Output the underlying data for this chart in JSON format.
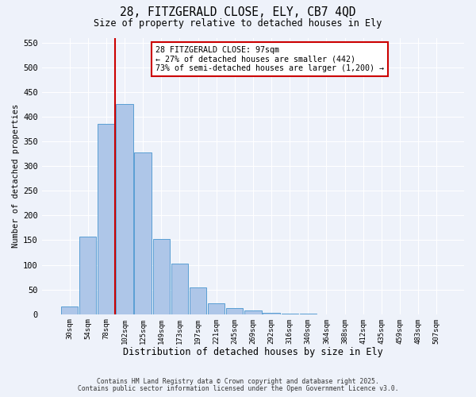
{
  "title_line1": "28, FITZGERALD CLOSE, ELY, CB7 4QD",
  "title_line2": "Size of property relative to detached houses in Ely",
  "xlabel": "Distribution of detached houses by size in Ely",
  "ylabel": "Number of detached properties",
  "bar_labels": [
    "30sqm",
    "54sqm",
    "78sqm",
    "102sqm",
    "125sqm",
    "149sqm",
    "173sqm",
    "197sqm",
    "221sqm",
    "245sqm",
    "269sqm",
    "292sqm",
    "316sqm",
    "340sqm",
    "364sqm",
    "388sqm",
    "412sqm",
    "435sqm",
    "459sqm",
    "483sqm",
    "507sqm"
  ],
  "bar_heights": [
    15,
    157,
    385,
    425,
    328,
    153,
    102,
    55,
    22,
    12,
    8,
    2,
    1,
    1,
    0,
    0,
    0,
    0,
    0,
    0,
    0
  ],
  "bar_color": "#aec6e8",
  "bar_edge_color": "#5a9fd4",
  "vline_color": "#cc0000",
  "vline_x_index": 3,
  "annotation_title": "28 FITZGERALD CLOSE: 97sqm",
  "annotation_line2": "← 27% of detached houses are smaller (442)",
  "annotation_line3": "73% of semi-detached houses are larger (1,200) →",
  "annotation_box_color": "#ffffff",
  "annotation_box_edge": "#cc0000",
  "ylim": [
    0,
    560
  ],
  "yticks": [
    0,
    50,
    100,
    150,
    200,
    250,
    300,
    350,
    400,
    450,
    500,
    550
  ],
  "footer_line1": "Contains HM Land Registry data © Crown copyright and database right 2025.",
  "footer_line2": "Contains public sector information licensed under the Open Government Licence v3.0.",
  "bg_color": "#eef2fa"
}
